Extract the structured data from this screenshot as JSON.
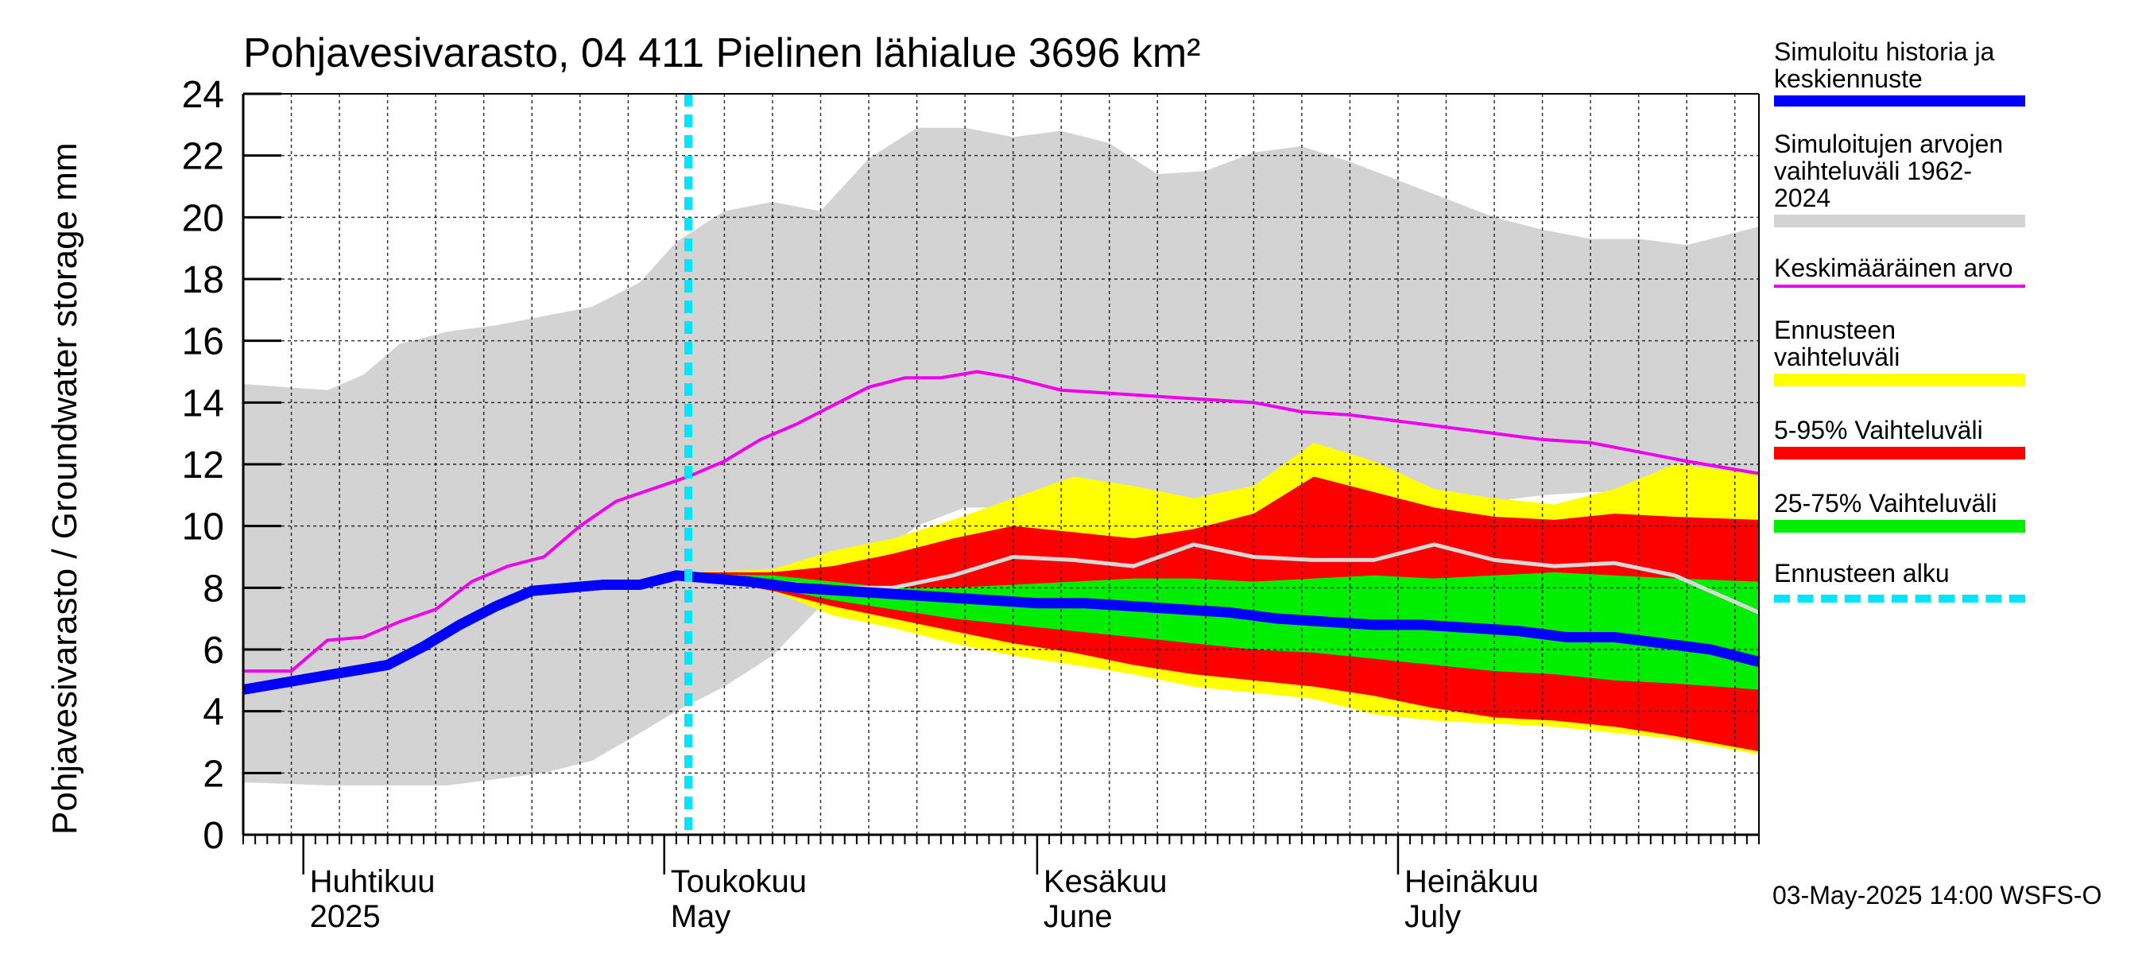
{
  "chart_data": {
    "type": "area",
    "title": "Pohjavesivarasto, 04 411 Pielinen lähialue 3696 km²",
    "ylabel": "Pohjavesivarasto / Groundwater storage   mm",
    "ylim": [
      0,
      24
    ],
    "y_ticks": [
      0,
      2,
      4,
      6,
      8,
      10,
      12,
      14,
      16,
      18,
      20,
      22,
      24
    ],
    "x_range": [
      "2025-03-27",
      "2025-07-31"
    ],
    "month_labels": [
      {
        "fi": "Huhtikuu",
        "en": "2025"
      },
      {
        "fi": "Toukokuu",
        "en": "May"
      },
      {
        "fi": "Kesäkuu",
        "en": "June"
      },
      {
        "fi": "Heinäkuu",
        "en": "July"
      }
    ],
    "forecast_start": "2025-05-03",
    "series": [
      {
        "name": "Simuloitujen arvojen vaihteluväli 1962-2024",
        "kind": "band",
        "color": "#d3d3d3",
        "x": [
          "2025-03-27",
          "2025-04-03",
          "2025-04-06",
          "2025-04-09",
          "2025-04-13",
          "2025-04-17",
          "2025-04-21",
          "2025-04-25",
          "2025-04-29",
          "2025-05-02",
          "2025-05-06",
          "2025-05-10",
          "2025-05-14",
          "2025-05-18",
          "2025-05-22",
          "2025-05-26",
          "2025-05-30",
          "2025-06-03",
          "2025-06-07",
          "2025-06-11",
          "2025-06-15",
          "2025-06-19",
          "2025-06-23",
          "2025-06-27",
          "2025-07-01",
          "2025-07-05",
          "2025-07-09",
          "2025-07-13",
          "2025-07-17",
          "2025-07-21",
          "2025-07-25",
          "2025-07-28",
          "2025-07-31"
        ],
        "upper": [
          14.6,
          14.4,
          14.9,
          15.9,
          16.3,
          16.5,
          16.8,
          17.1,
          17.9,
          19.2,
          20.2,
          20.5,
          20.2,
          21.9,
          22.9,
          22.9,
          22.6,
          22.8,
          22.4,
          21.4,
          21.5,
          22.1,
          22.3,
          21.8,
          21.2,
          20.6,
          20.0,
          19.6,
          19.3,
          19.3,
          19.1,
          19.4,
          19.7
        ],
        "lower": [
          1.7,
          1.6,
          1.6,
          1.6,
          1.6,
          1.8,
          2.0,
          2.4,
          3.3,
          4.0,
          4.8,
          5.8,
          7.4,
          8.8,
          10.0,
          10.6,
          10.6,
          10.5,
          10.8,
          10.6,
          10.7,
          11.1,
          11.0,
          10.9,
          10.6,
          10.4,
          10.8,
          11.0,
          11.1,
          11.1,
          11.6,
          11.6,
          11.7
        ]
      },
      {
        "name": "Ennusteen vaihteluväli",
        "kind": "band",
        "color": "#ffff00",
        "x": [
          "2025-05-03",
          "2025-05-10",
          "2025-05-15",
          "2025-05-20",
          "2025-05-25",
          "2025-05-30",
          "2025-06-04",
          "2025-06-09",
          "2025-06-14",
          "2025-06-19",
          "2025-06-24",
          "2025-06-29",
          "2025-07-04",
          "2025-07-09",
          "2025-07-14",
          "2025-07-19",
          "2025-07-24",
          "2025-07-31"
        ],
        "upper": [
          8.5,
          8.6,
          9.2,
          9.6,
          10.2,
          10.9,
          11.6,
          11.3,
          10.9,
          11.3,
          12.7,
          12.1,
          11.2,
          10.9,
          10.7,
          11.2,
          12.0,
          11.7
        ],
        "lower": [
          8.4,
          7.9,
          7.1,
          6.7,
          6.2,
          5.8,
          5.5,
          5.2,
          4.8,
          4.6,
          4.4,
          3.9,
          3.7,
          3.6,
          3.5,
          3.3,
          3.1,
          2.6
        ]
      },
      {
        "name": "5-95% Vaihteluväli",
        "kind": "band",
        "color": "#ff0000",
        "x": [
          "2025-05-03",
          "2025-05-10",
          "2025-05-15",
          "2025-05-20",
          "2025-05-25",
          "2025-05-30",
          "2025-06-04",
          "2025-06-09",
          "2025-06-14",
          "2025-06-19",
          "2025-06-24",
          "2025-06-29",
          "2025-07-04",
          "2025-07-09",
          "2025-07-14",
          "2025-07-19",
          "2025-07-24",
          "2025-07-31"
        ],
        "upper": [
          8.5,
          8.5,
          8.7,
          9.1,
          9.6,
          10.0,
          9.8,
          9.6,
          9.9,
          10.4,
          11.6,
          11.1,
          10.6,
          10.3,
          10.2,
          10.4,
          10.3,
          10.2
        ],
        "lower": [
          8.4,
          7.9,
          7.4,
          7.0,
          6.6,
          6.2,
          5.9,
          5.5,
          5.2,
          5.0,
          4.8,
          4.5,
          4.1,
          3.8,
          3.7,
          3.5,
          3.2,
          2.7
        ]
      },
      {
        "name": "25-75% Vaihteluväli",
        "kind": "band",
        "color": "#00ee00",
        "x": [
          "2025-05-03",
          "2025-05-10",
          "2025-05-15",
          "2025-05-20",
          "2025-05-25",
          "2025-05-30",
          "2025-06-04",
          "2025-06-09",
          "2025-06-14",
          "2025-06-19",
          "2025-06-24",
          "2025-06-29",
          "2025-07-04",
          "2025-07-09",
          "2025-07-14",
          "2025-07-19",
          "2025-07-24",
          "2025-07-31"
        ],
        "upper": [
          8.45,
          8.4,
          8.2,
          8.0,
          8.0,
          8.1,
          8.2,
          8.3,
          8.3,
          8.2,
          8.3,
          8.4,
          8.3,
          8.4,
          8.5,
          8.4,
          8.3,
          8.2
        ],
        "lower": [
          8.4,
          8.0,
          7.6,
          7.3,
          7.0,
          6.8,
          6.6,
          6.4,
          6.2,
          6.0,
          5.9,
          5.7,
          5.5,
          5.3,
          5.2,
          5.0,
          4.9,
          4.7
        ]
      },
      {
        "name": "Keskimääräinen arvo",
        "kind": "line",
        "color": "#ee00ee",
        "x": [
          "2025-03-27",
          "2025-03-31",
          "2025-04-03",
          "2025-04-06",
          "2025-04-09",
          "2025-04-12",
          "2025-04-15",
          "2025-04-18",
          "2025-04-21",
          "2025-04-24",
          "2025-04-27",
          "2025-04-30",
          "2025-05-03",
          "2025-05-06",
          "2025-05-09",
          "2025-05-12",
          "2025-05-15",
          "2025-05-18",
          "2025-05-21",
          "2025-05-24",
          "2025-05-27",
          "2025-05-30",
          "2025-06-03",
          "2025-06-07",
          "2025-06-11",
          "2025-06-15",
          "2025-06-19",
          "2025-06-23",
          "2025-06-27",
          "2025-07-01",
          "2025-07-05",
          "2025-07-09",
          "2025-07-13",
          "2025-07-17",
          "2025-07-21",
          "2025-07-25",
          "2025-07-31"
        ],
        "values": [
          5.3,
          5.3,
          6.3,
          6.4,
          6.9,
          7.3,
          8.2,
          8.7,
          9.0,
          10.0,
          10.8,
          11.2,
          11.6,
          12.1,
          12.8,
          13.3,
          13.9,
          14.5,
          14.8,
          14.8,
          15.0,
          14.8,
          14.4,
          14.3,
          14.2,
          14.1,
          14.0,
          13.7,
          13.6,
          13.4,
          13.2,
          13.0,
          12.8,
          12.7,
          12.4,
          12.1,
          11.7
        ]
      },
      {
        "name": "Mediaani (ennuste)",
        "kind": "line",
        "color": "#d8d8d8",
        "x": [
          "2025-05-03",
          "2025-05-10",
          "2025-05-15",
          "2025-05-20",
          "2025-05-25",
          "2025-05-30",
          "2025-06-04",
          "2025-06-09",
          "2025-06-14",
          "2025-06-19",
          "2025-06-24",
          "2025-06-29",
          "2025-07-04",
          "2025-07-09",
          "2025-07-14",
          "2025-07-19",
          "2025-07-24",
          "2025-07-31"
        ],
        "values": [
          8.4,
          8.2,
          8.0,
          8.0,
          8.4,
          9.0,
          8.9,
          8.7,
          9.4,
          9.0,
          8.9,
          8.9,
          9.4,
          8.9,
          8.7,
          8.8,
          8.4,
          7.2
        ]
      },
      {
        "name": "Simuloitu historia ja keskiennuste",
        "kind": "line",
        "color": "#0000ff",
        "x": [
          "2025-03-27",
          "2025-03-30",
          "2025-04-02",
          "2025-04-05",
          "2025-04-08",
          "2025-04-11",
          "2025-04-14",
          "2025-04-17",
          "2025-04-20",
          "2025-04-23",
          "2025-04-26",
          "2025-04-29",
          "2025-05-02",
          "2025-05-05",
          "2025-05-08",
          "2025-05-12",
          "2025-05-16",
          "2025-05-20",
          "2025-05-24",
          "2025-05-28",
          "2025-06-01",
          "2025-06-05",
          "2025-06-09",
          "2025-06-13",
          "2025-06-17",
          "2025-06-21",
          "2025-06-25",
          "2025-06-29",
          "2025-07-03",
          "2025-07-07",
          "2025-07-11",
          "2025-07-15",
          "2025-07-19",
          "2025-07-23",
          "2025-07-27",
          "2025-07-31"
        ],
        "values": [
          4.7,
          4.9,
          5.1,
          5.3,
          5.5,
          6.1,
          6.8,
          7.4,
          7.9,
          8.0,
          8.1,
          8.1,
          8.4,
          8.3,
          8.2,
          8.0,
          7.9,
          7.8,
          7.7,
          7.6,
          7.5,
          7.5,
          7.4,
          7.3,
          7.2,
          7.0,
          6.9,
          6.8,
          6.8,
          6.7,
          6.6,
          6.4,
          6.4,
          6.2,
          6.0,
          5.6
        ]
      }
    ],
    "legend": [
      {
        "label": "Simuloitu historia ja\nkeskiennuste",
        "color": "#0000ff",
        "style": "thick"
      },
      {
        "label": "Simuloitujen arvojen\nvaihteluväli 1962-2024",
        "color": "#d3d3d3",
        "style": "band"
      },
      {
        "label": "Keskimääräinen arvo",
        "color": "#ee00ee",
        "style": "thin"
      },
      {
        "label": "Ennusteen vaihteluväli",
        "color": "#ffff00",
        "style": "band"
      },
      {
        "label": "5-95% Vaihteluväli",
        "color": "#ff0000",
        "style": "band"
      },
      {
        "label": "25-75% Vaihteluväli",
        "color": "#00ee00",
        "style": "band"
      },
      {
        "label": "Ennusteen alku",
        "color": "#00e5ff",
        "style": "dashed"
      }
    ],
    "legend_position": "right",
    "grid": true
  },
  "footer": "03-May-2025 14:00 WSFS-O"
}
